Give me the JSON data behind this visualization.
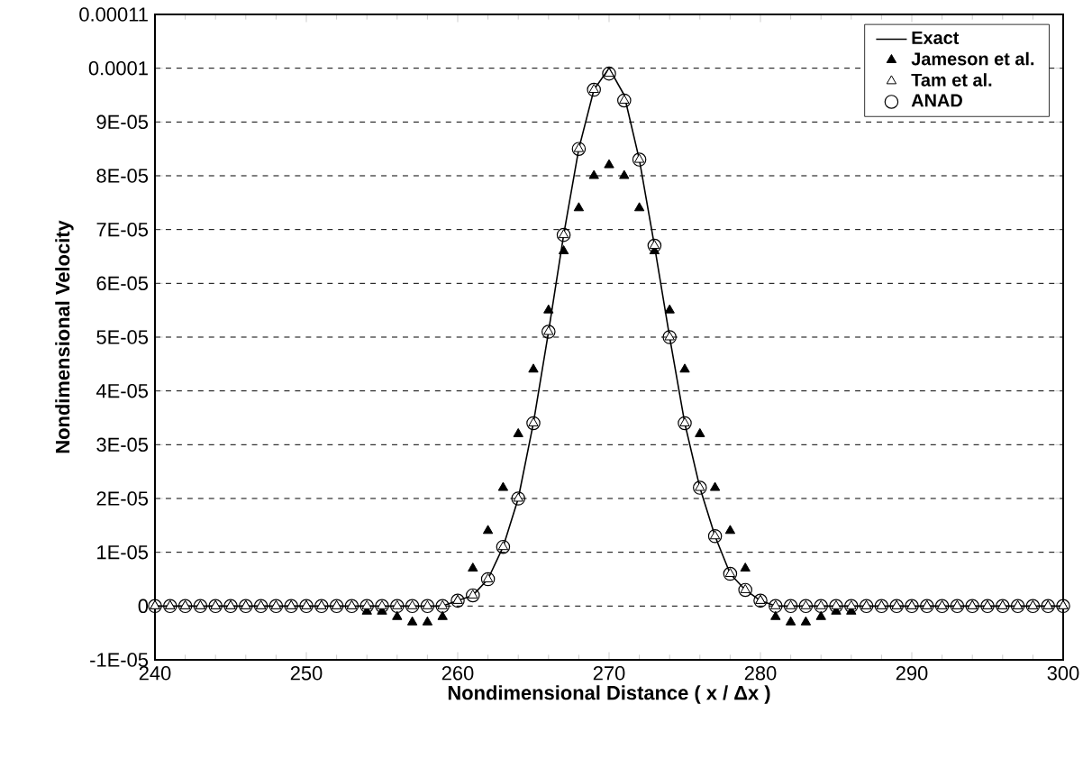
{
  "chart_data": {
    "type": "line",
    "xlabel": "Nondimensional Distance ( x / Δx )",
    "ylabel": "Nondimensional Velocity",
    "x": [
      240,
      241,
      242,
      243,
      244,
      245,
      246,
      247,
      248,
      249,
      250,
      251,
      252,
      253,
      254,
      255,
      256,
      257,
      258,
      259,
      260,
      261,
      262,
      263,
      264,
      265,
      266,
      267,
      268,
      269,
      270,
      271,
      272,
      273,
      274,
      275,
      276,
      277,
      278,
      279,
      280,
      281,
      282,
      283,
      284,
      285,
      286,
      287,
      288,
      289,
      290,
      291,
      292,
      293,
      294,
      295,
      296,
      297,
      298,
      299,
      300
    ],
    "series": [
      {
        "name": "Exact",
        "marker": "none",
        "color": "#000000",
        "values": [
          0,
          0,
          0,
          0,
          0,
          0,
          0,
          0,
          0,
          0,
          0,
          0,
          0,
          0,
          0,
          0,
          0,
          0,
          0,
          0,
          1e-06,
          2e-06,
          5e-06,
          1.1e-05,
          2e-05,
          3.4e-05,
          5.1e-05,
          6.9e-05,
          8.5e-05,
          9.6e-05,
          0.0001,
          9.5e-05,
          8.3e-05,
          6.7e-05,
          5e-05,
          3.4e-05,
          2.2e-05,
          1.3e-05,
          6e-06,
          3e-06,
          1e-06,
          0,
          0,
          0,
          0,
          0,
          0,
          0,
          0,
          0,
          0,
          0,
          0,
          0,
          0,
          0,
          0,
          0,
          0,
          0,
          0
        ]
      },
      {
        "name": "Jameson et al.",
        "type": "scatter",
        "marker": "triangle",
        "color": "#000000",
        "values": [
          0,
          0,
          0,
          0,
          0,
          0,
          0,
          0,
          0,
          0,
          0,
          0,
          0,
          0,
          -1e-06,
          -1e-06,
          -2e-06,
          -3e-06,
          -3e-06,
          -2e-06,
          1e-06,
          7e-06,
          1.4e-05,
          2.2e-05,
          3.2e-05,
          4.4e-05,
          5.5e-05,
          6.6e-05,
          7.4e-05,
          8e-05,
          8.2e-05,
          8e-05,
          7.4e-05,
          6.6e-05,
          5.5e-05,
          4.4e-05,
          3.2e-05,
          2.2e-05,
          1.4e-05,
          7e-06,
          1e-06,
          -2e-06,
          -3e-06,
          -3e-06,
          -2e-06,
          -1e-06,
          -1e-06,
          0,
          0,
          0,
          0,
          0,
          0,
          0,
          0,
          0,
          0,
          0,
          0,
          0,
          0
        ]
      },
      {
        "name": "Tam et al.",
        "type": "scatter",
        "marker": "triangle",
        "color": "#ffffff",
        "values": [
          0,
          0,
          0,
          0,
          0,
          0,
          0,
          0,
          0,
          0,
          0,
          0,
          0,
          0,
          0,
          0,
          0,
          0,
          0,
          0,
          1e-06,
          2e-06,
          5e-06,
          1.1e-05,
          2e-05,
          3.4e-05,
          5.1e-05,
          6.9e-05,
          8.5e-05,
          9.6e-05,
          9.9e-05,
          9.4e-05,
          8.3e-05,
          6.7e-05,
          5e-05,
          3.4e-05,
          2.2e-05,
          1.3e-05,
          6e-06,
          3e-06,
          1e-06,
          0,
          0,
          0,
          0,
          0,
          0,
          0,
          0,
          0,
          0,
          0,
          0,
          0,
          0,
          0,
          0,
          0,
          0,
          0,
          0
        ]
      },
      {
        "name": "ANAD",
        "type": "scatter",
        "marker": "circle",
        "color": "#000000",
        "values": [
          0,
          0,
          0,
          0,
          0,
          0,
          0,
          0,
          0,
          0,
          0,
          0,
          0,
          0,
          0,
          0,
          0,
          0,
          0,
          0,
          1e-06,
          2e-06,
          5e-06,
          1.1e-05,
          2e-05,
          3.4e-05,
          5.1e-05,
          6.9e-05,
          8.5e-05,
          9.6e-05,
          9.9e-05,
          9.4e-05,
          8.3e-05,
          6.7e-05,
          5e-05,
          3.4e-05,
          2.2e-05,
          1.3e-05,
          6e-06,
          3e-06,
          1e-06,
          0,
          0,
          0,
          0,
          0,
          0,
          0,
          0,
          0,
          0,
          0,
          0,
          0,
          0,
          0,
          0,
          0,
          0,
          0,
          0
        ]
      }
    ],
    "xlim": [
      240,
      300
    ],
    "xticks": [
      240,
      250,
      260,
      270,
      280,
      290,
      300
    ],
    "ylim": [
      -1e-05,
      0.00011
    ],
    "yticks": [
      {
        "value": -1e-05,
        "label": "-1E-05"
      },
      0,
      {
        "value": 1e-05,
        "label": "1E-05"
      },
      {
        "value": 2e-05,
        "label": "2E-05"
      },
      {
        "value": 3e-05,
        "label": "3E-05"
      },
      {
        "value": 4e-05,
        "label": "4E-05"
      },
      {
        "value": 5e-05,
        "label": "5E-05"
      },
      {
        "value": 6e-05,
        "label": "6E-05"
      },
      {
        "value": 7e-05,
        "label": "7E-05"
      },
      {
        "value": 8e-05,
        "label": "8E-05"
      },
      {
        "value": 9e-05,
        "label": "9E-05"
      },
      0.0001,
      0.00011
    ],
    "grid": "y",
    "legend": "top right"
  }
}
